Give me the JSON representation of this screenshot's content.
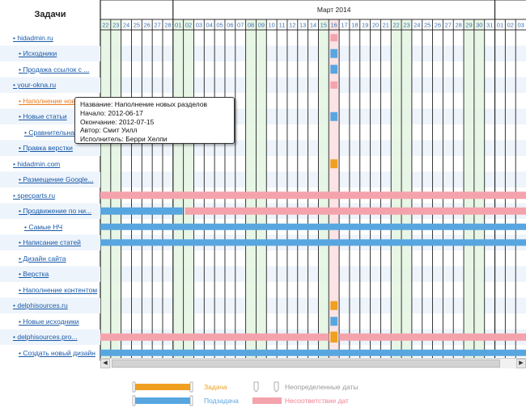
{
  "tasks_header": "Задачи",
  "month_label": "Март 2014",
  "days": [
    "22",
    "23",
    "24",
    "25",
    "26",
    "27",
    "28",
    "01",
    "02",
    "03",
    "04",
    "05",
    "06",
    "07",
    "08",
    "09",
    "10",
    "11",
    "12",
    "13",
    "14",
    "15",
    "16",
    "17",
    "18",
    "19",
    "20",
    "21",
    "22",
    "23",
    "24",
    "25",
    "26",
    "27",
    "28",
    "29",
    "30",
    "31",
    "01",
    "02",
    "03"
  ],
  "tasks": [
    {
      "label": "• hidadmin.ru",
      "level": 0
    },
    {
      "label": "• Исходники",
      "level": 1
    },
    {
      "label": "• Продажа ссылок с ...",
      "level": 1
    },
    {
      "label": "• your-okna.ru",
      "level": 0
    },
    {
      "label": "• Наполнение новых разделов",
      "level": 1,
      "active": true
    },
    {
      "label": "• Новые статьи",
      "level": 1
    },
    {
      "label": "• Сравнительная",
      "level": 2
    },
    {
      "label": "• Правка верстки",
      "level": 1
    },
    {
      "label": "• hidadmin.com",
      "level": 0
    },
    {
      "label": "• Размещение Google...",
      "level": 1
    },
    {
      "label": "• specparts.ru",
      "level": 0
    },
    {
      "label": "• Продвижение по ни...",
      "level": 1
    },
    {
      "label": "• Самые НЧ",
      "level": 2
    },
    {
      "label": "• Написание статей",
      "level": 1
    },
    {
      "label": "• Дизайн сайта",
      "level": 1
    },
    {
      "label": "• Верстка",
      "level": 1
    },
    {
      "label": "• Наполнение контентом",
      "level": 1
    },
    {
      "label": "• delphisources.ru",
      "level": 0
    },
    {
      "label": "• Новые исходники",
      "level": 1
    },
    {
      "label": "• delphisources.pro...",
      "level": 0
    },
    {
      "label": "• Создать новый дизайн",
      "level": 1
    }
  ],
  "tooltip": {
    "name": "Название: Наполнение новых разделов",
    "start": "Начало: 2012-06-17",
    "end": "Окончание: 2012-07-15",
    "author": "Автор: Смит Уилл",
    "executor": "Исполнитель: Берри Хелпи"
  },
  "legend": {
    "task": "Задача",
    "subtask": "Подзадача",
    "undefined_dates": "Неопределенные даты",
    "mismatch_dates": "Несоответствие дат"
  },
  "colors": {
    "task": "#f0a020",
    "subtask": "#58a6e0",
    "mismatch": "#f4a3ac",
    "weekend": "#e4f5e0",
    "today": "#fbe3e6",
    "link": "#1a5aa8",
    "active": "#e87a1e"
  }
}
